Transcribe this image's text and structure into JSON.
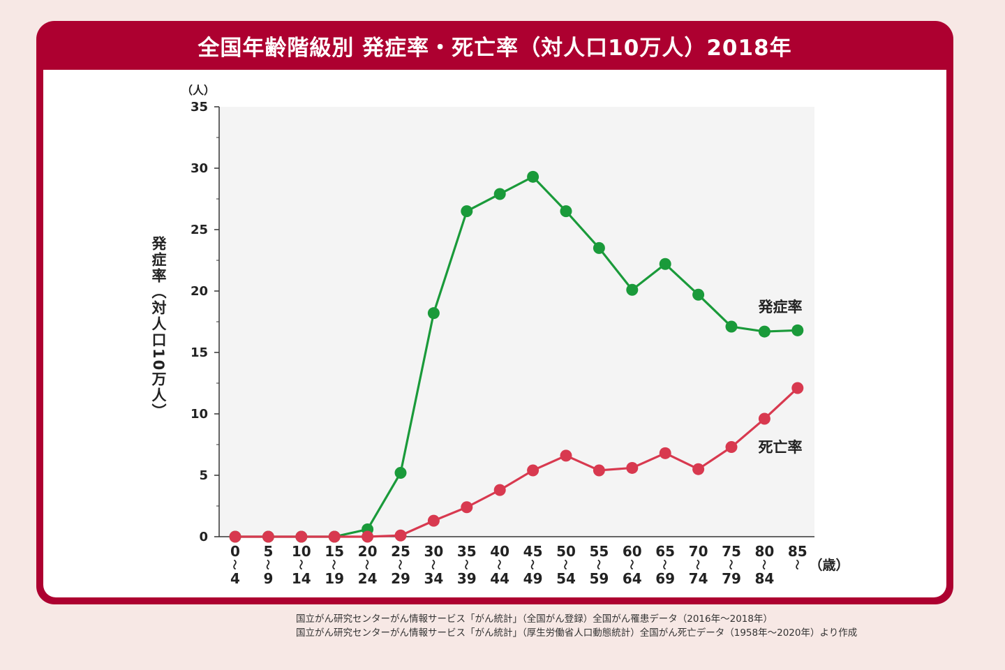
{
  "chart_data": {
    "type": "line",
    "title": "全国年齢階級別 発症率・死亡率（対人口10万人）2018年",
    "ylabel": "発症率（対人口10万人）",
    "y_unit": "（人）",
    "x_unit": "（歳）",
    "ylim": [
      0,
      35
    ],
    "yticks": [
      "0",
      "5",
      "10",
      "15",
      "20",
      "25",
      "30",
      "35"
    ],
    "grid": false,
    "categories": [
      {
        "top": "0",
        "bottom": "4"
      },
      {
        "top": "5",
        "bottom": "9"
      },
      {
        "top": "10",
        "bottom": "14"
      },
      {
        "top": "15",
        "bottom": "19"
      },
      {
        "top": "20",
        "bottom": "24"
      },
      {
        "top": "25",
        "bottom": "29"
      },
      {
        "top": "30",
        "bottom": "34"
      },
      {
        "top": "35",
        "bottom": "39"
      },
      {
        "top": "40",
        "bottom": "44"
      },
      {
        "top": "45",
        "bottom": "49"
      },
      {
        "top": "50",
        "bottom": "54"
      },
      {
        "top": "55",
        "bottom": "59"
      },
      {
        "top": "60",
        "bottom": "64"
      },
      {
        "top": "65",
        "bottom": "69"
      },
      {
        "top": "70",
        "bottom": "74"
      },
      {
        "top": "75",
        "bottom": "79"
      },
      {
        "top": "80",
        "bottom": "84"
      },
      {
        "top": "85",
        "bottom": ""
      }
    ],
    "series": [
      {
        "name": "発症率",
        "color": "#1a9a3a",
        "values": [
          0.0,
          0.0,
          0.0,
          0.0,
          0.6,
          5.2,
          18.2,
          26.5,
          27.9,
          29.3,
          26.5,
          23.5,
          20.1,
          22.2,
          19.7,
          17.1,
          16.7,
          16.8
        ]
      },
      {
        "name": "死亡率",
        "color": "#d8394f",
        "values": [
          0.0,
          0.0,
          0.0,
          0.0,
          0.0,
          0.1,
          1.3,
          2.4,
          3.8,
          5.4,
          6.6,
          5.4,
          5.6,
          6.8,
          5.5,
          7.3,
          9.6,
          12.1
        ]
      }
    ]
  },
  "source": {
    "line1": "国立がん研究センターがん情報サービス「がん統計」（全国がん登録）全国がん罹患データ（2016年〜2018年）",
    "line2": "国立がん研究センターがん情報サービス「がん統計」（厚生労働省人口動態統計）全国がん死亡データ（1958年〜2020年）より作成"
  }
}
